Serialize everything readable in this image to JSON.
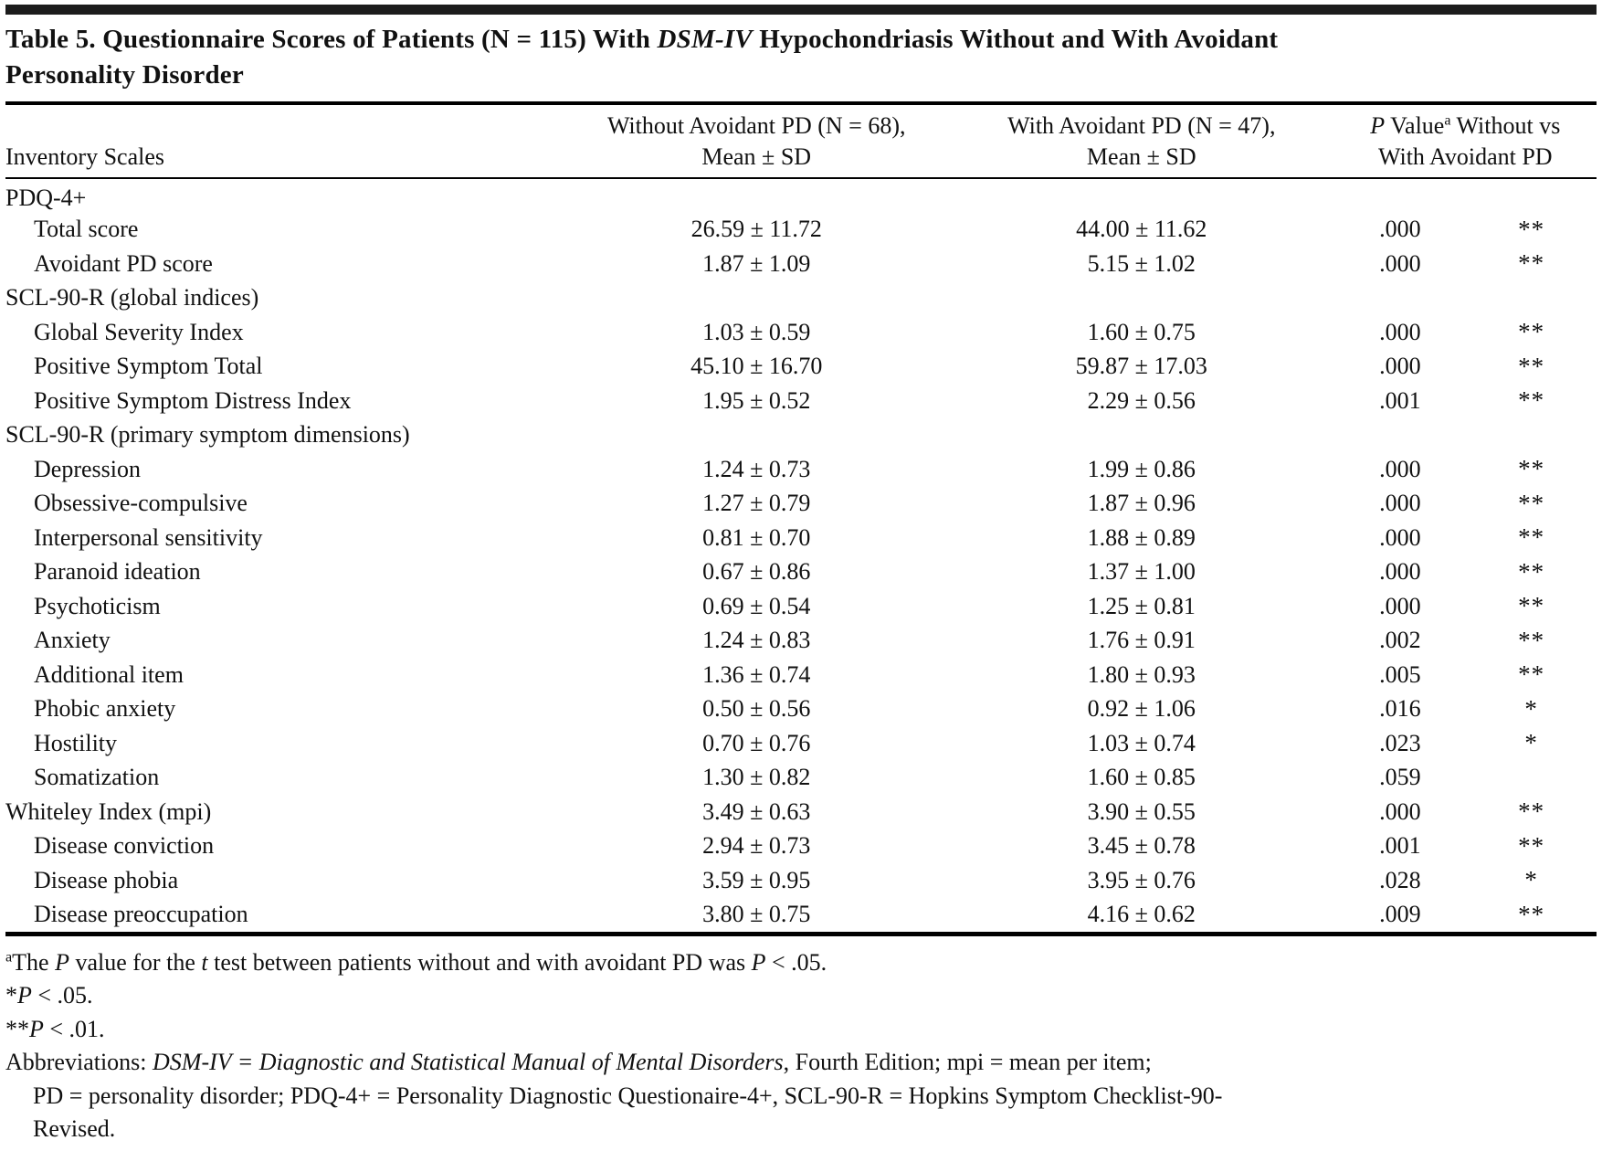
{
  "title": {
    "segments": [
      {
        "text": "Table 5. Questionnaire Scores of Patients (N = 115) With "
      },
      {
        "text": "DSM-IV",
        "italic": true
      },
      {
        "text": " Hypochondriasis Without and With Avoidant"
      },
      {
        "break": true
      },
      {
        "text": "Personality Disorder"
      }
    ]
  },
  "header": {
    "inventory_scales": "Inventory Scales",
    "without_line1": "Without Avoidant PD (N = 68),",
    "without_line2": "Mean ± SD",
    "with_line1": "With Avoidant PD (N = 47),",
    "with_line2": "Mean ± SD",
    "pvalue_line1_segments": [
      {
        "text": "P",
        "italic": true
      },
      {
        "text": " Value"
      },
      {
        "text": "a",
        "sup": true
      },
      {
        "text": " Without vs"
      }
    ],
    "pvalue_line2": "With Avoidant PD"
  },
  "table": {
    "rows": [
      {
        "label": "PDQ-4+",
        "indent": false,
        "without": "",
        "with": "",
        "p": "",
        "sig": ""
      },
      {
        "label": "Total score",
        "indent": true,
        "without": "26.59 ± 11.72",
        "with": "44.00 ± 11.62",
        "p": ".000",
        "sig": "**"
      },
      {
        "label": "Avoidant PD score",
        "indent": true,
        "without": "1.87 ± 1.09",
        "with": "5.15 ± 1.02",
        "p": ".000",
        "sig": "**"
      },
      {
        "label": "SCL-90-R (global indices)",
        "indent": false,
        "without": "",
        "with": "",
        "p": "",
        "sig": ""
      },
      {
        "label": "Global Severity Index",
        "indent": true,
        "without": "1.03 ± 0.59",
        "with": "1.60 ± 0.75",
        "p": ".000",
        "sig": "**"
      },
      {
        "label": "Positive Symptom Total",
        "indent": true,
        "without": "45.10 ± 16.70",
        "with": "59.87 ± 17.03",
        "p": ".000",
        "sig": "**"
      },
      {
        "label": "Positive Symptom Distress Index",
        "indent": true,
        "without": "1.95 ± 0.52",
        "with": "2.29 ± 0.56",
        "p": ".001",
        "sig": "**"
      },
      {
        "label": "SCL-90-R (primary symptom dimensions)",
        "indent": false,
        "without": "",
        "with": "",
        "p": "",
        "sig": ""
      },
      {
        "label": "Depression",
        "indent": true,
        "without": "1.24 ± 0.73",
        "with": "1.99 ± 0.86",
        "p": ".000",
        "sig": "**"
      },
      {
        "label": "Obsessive-compulsive",
        "indent": true,
        "without": "1.27 ± 0.79",
        "with": "1.87 ± 0.96",
        "p": ".000",
        "sig": "**"
      },
      {
        "label": "Interpersonal sensitivity",
        "indent": true,
        "without": "0.81 ± 0.70",
        "with": "1.88 ± 0.89",
        "p": ".000",
        "sig": "**"
      },
      {
        "label": "Paranoid ideation",
        "indent": true,
        "without": "0.67 ± 0.86",
        "with": "1.37 ± 1.00",
        "p": ".000",
        "sig": "**"
      },
      {
        "label": "Psychoticism",
        "indent": true,
        "without": "0.69 ± 0.54",
        "with": "1.25 ± 0.81",
        "p": ".000",
        "sig": "**"
      },
      {
        "label": "Anxiety",
        "indent": true,
        "without": "1.24 ± 0.83",
        "with": "1.76 ± 0.91",
        "p": ".002",
        "sig": "**"
      },
      {
        "label": "Additional item",
        "indent": true,
        "without": "1.36 ± 0.74",
        "with": "1.80 ± 0.93",
        "p": ".005",
        "sig": "**"
      },
      {
        "label": "Phobic anxiety",
        "indent": true,
        "without": "0.50 ± 0.56",
        "with": "0.92 ± 1.06",
        "p": ".016",
        "sig": "*"
      },
      {
        "label": "Hostility",
        "indent": true,
        "without": "0.70 ± 0.76",
        "with": "1.03 ± 0.74",
        "p": ".023",
        "sig": "*"
      },
      {
        "label": "Somatization",
        "indent": true,
        "without": "1.30 ± 0.82",
        "with": "1.60 ± 0.85",
        "p": ".059",
        "sig": ""
      },
      {
        "label": "Whiteley Index (mpi)",
        "indent": false,
        "without": "3.49 ± 0.63",
        "with": "3.90 ± 0.55",
        "p": ".000",
        "sig": "**"
      },
      {
        "label": "Disease conviction",
        "indent": true,
        "without": "2.94 ± 0.73",
        "with": "3.45 ± 0.78",
        "p": ".001",
        "sig": "**"
      },
      {
        "label": "Disease phobia",
        "indent": true,
        "without": "3.59 ± 0.95",
        "with": "3.95 ± 0.76",
        "p": ".028",
        "sig": "*"
      },
      {
        "label": "Disease preoccupation",
        "indent": true,
        "without": "3.80 ± 0.75",
        "with": "4.16 ± 0.62",
        "p": ".009",
        "sig": "**"
      }
    ]
  },
  "footnotes": [
    {
      "indent": false,
      "segments": [
        {
          "text": "a",
          "sup": true
        },
        {
          "text": "The "
        },
        {
          "text": "P",
          "italic": true
        },
        {
          "text": " value for the "
        },
        {
          "text": "t",
          "italic": true
        },
        {
          "text": " test between patients without and with avoidant PD was "
        },
        {
          "text": "P",
          "italic": true
        },
        {
          "text": " < .05."
        }
      ]
    },
    {
      "indent": false,
      "segments": [
        {
          "text": "*"
        },
        {
          "text": "P",
          "italic": true
        },
        {
          "text": " < .05."
        }
      ]
    },
    {
      "indent": false,
      "segments": [
        {
          "text": "**"
        },
        {
          "text": "P",
          "italic": true
        },
        {
          "text": " < .01."
        }
      ]
    },
    {
      "indent": false,
      "segments": [
        {
          "text": "Abbreviations: "
        },
        {
          "text": "DSM-IV = Diagnostic and Statistical Manual of Mental Disorders",
          "italic": true
        },
        {
          "text": ", Fourth Edition; mpi = mean per item;"
        }
      ]
    },
    {
      "indent": true,
      "segments": [
        {
          "text": "PD = personality disorder; PDQ-4+ = Personality Diagnostic Questionaire-4+, SCL-90-R = Hopkins Symptom Checklist-90-"
        }
      ]
    },
    {
      "indent": true,
      "segments": [
        {
          "text": "Revised."
        }
      ]
    }
  ]
}
